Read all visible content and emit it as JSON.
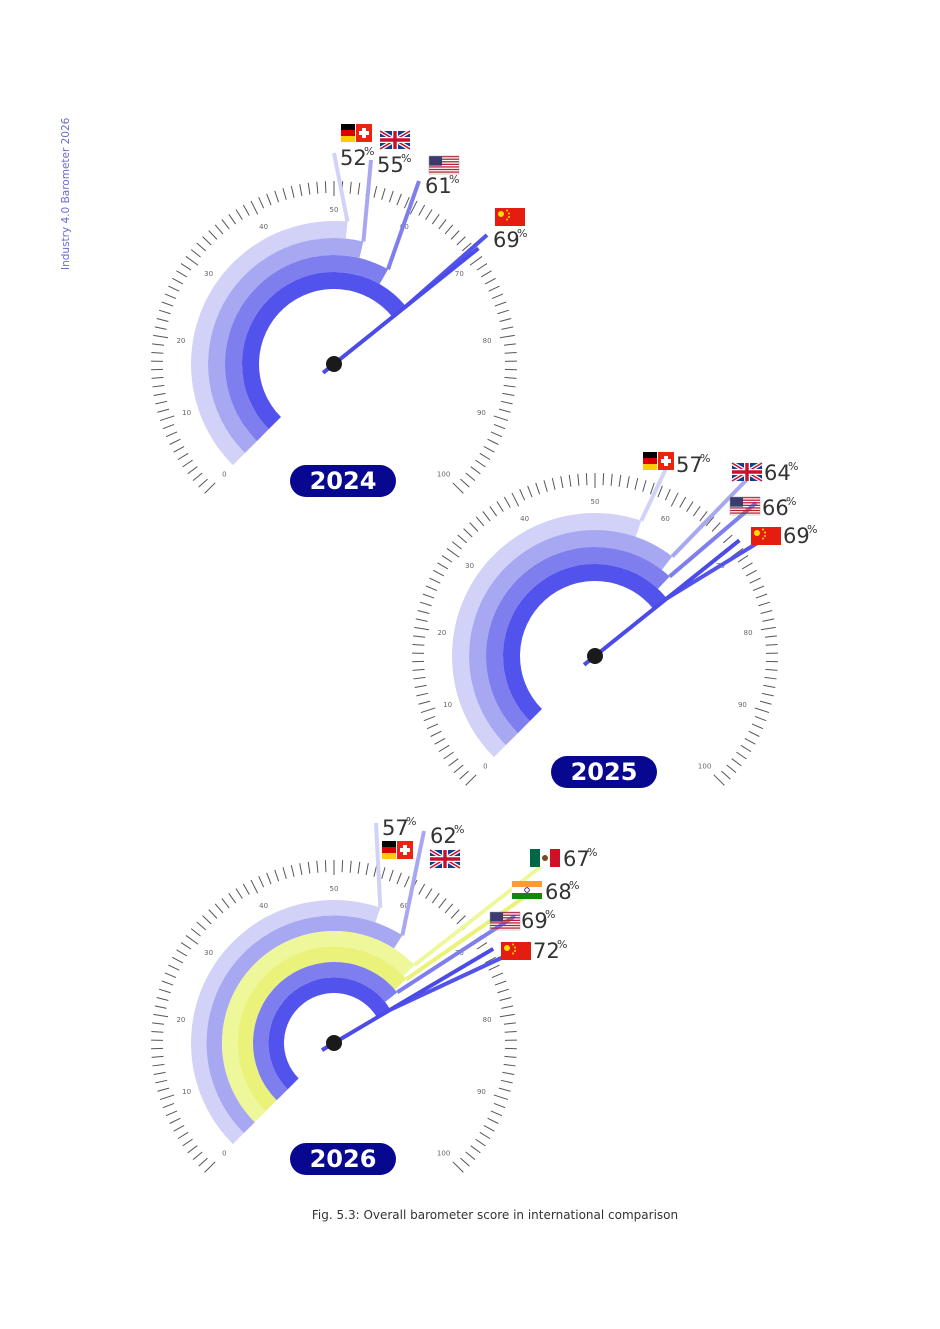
{
  "side_label": "Industry 4.0 Barometer 2026",
  "caption": "Fig. 5.3: Overall barometer score in international comparison",
  "colors": {
    "needle": "#4b4be8",
    "band_colors": [
      "#d2d2f8",
      "#a8a8f2",
      "#7e7eee",
      "#5252ec",
      "#eaf27a"
    ],
    "year_badge": "#07078f",
    "hub": "#1a1a1a"
  },
  "chart_data": [
    {
      "type": "gauge",
      "year_label": "2024",
      "range": [
        0,
        100
      ],
      "tick_labels": [
        "0",
        "10",
        "20",
        "30",
        "40",
        "50",
        "60",
        "70",
        "80",
        "90",
        "100"
      ],
      "series": [
        {
          "flag": "de-ch-flags",
          "value": 52,
          "label": "52",
          "pct": "%"
        },
        {
          "flag": "uk-flag-icon",
          "value": 55,
          "label": "55",
          "pct": "%"
        },
        {
          "flag": "us-flag-icon",
          "value": 61,
          "label": "61",
          "pct": "%"
        },
        {
          "flag": "cn-flag-icon",
          "value": 69,
          "label": "69",
          "pct": "%"
        }
      ]
    },
    {
      "type": "gauge",
      "year_label": "2025",
      "range": [
        0,
        100
      ],
      "tick_labels": [
        "0",
        "10",
        "20",
        "30",
        "40",
        "50",
        "60",
        "70",
        "80",
        "90",
        "100"
      ],
      "series": [
        {
          "flag": "de-ch-flags",
          "value": 57,
          "label": "57",
          "pct": "%"
        },
        {
          "flag": "uk-flag-icon",
          "value": 64,
          "label": "64",
          "pct": "%"
        },
        {
          "flag": "us-flag-icon",
          "value": 66,
          "label": "66",
          "pct": "%"
        },
        {
          "flag": "cn-flag-icon",
          "value": 69,
          "label": "69",
          "pct": "%"
        }
      ]
    },
    {
      "type": "gauge",
      "year_label": "2026",
      "range": [
        0,
        100
      ],
      "tick_labels": [
        "0",
        "10",
        "20",
        "30",
        "40",
        "50",
        "60",
        "70",
        "80",
        "90",
        "100"
      ],
      "series": [
        {
          "flag": "de-ch-flags",
          "value": 57,
          "label": "57",
          "pct": "%"
        },
        {
          "flag": "uk-flag-icon",
          "value": 62,
          "label": "62",
          "pct": "%"
        },
        {
          "flag": "mx-flag-icon",
          "value": 67,
          "label": "67",
          "pct": "%"
        },
        {
          "flag": "in-flag-icon",
          "value": 68,
          "label": "68",
          "pct": "%"
        },
        {
          "flag": "us-flag-icon",
          "value": 69,
          "label": "69",
          "pct": "%"
        },
        {
          "flag": "cn-flag-icon",
          "value": 72,
          "label": "72",
          "pct": "%"
        }
      ]
    }
  ]
}
